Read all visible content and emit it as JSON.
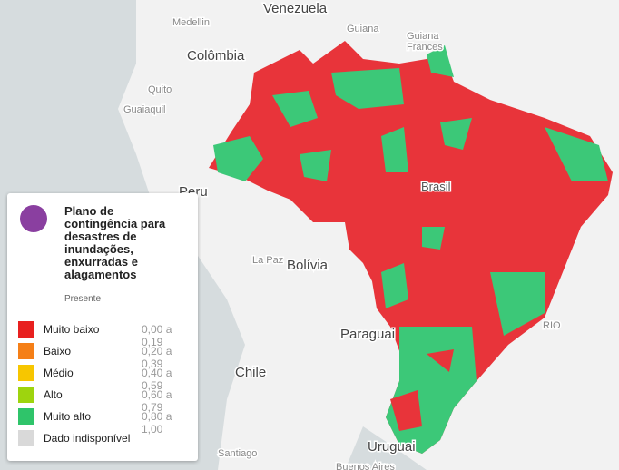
{
  "map": {
    "labels": [
      "Venezuela",
      "Medellin",
      "Colômbia",
      "Guiana",
      "Guiana",
      "Frances",
      "Quito",
      "Guaiaquil",
      "Peru",
      "Brasil",
      "La Paz",
      "Bolívia",
      "Paraguai",
      "Chile",
      "Uruguai",
      "Santiago",
      "Buenos Aires",
      "RIO"
    ]
  },
  "legend": {
    "title": "Plano de contingência para desastres de inundações, enxurradas e alagamentos",
    "subtitle": "Presente",
    "items": [
      {
        "label": "Muito baixo",
        "range": "0,00 a 0,19",
        "color": "#e8201f"
      },
      {
        "label": "Baixo",
        "range": "0,20 a 0,39",
        "color": "#f57f17"
      },
      {
        "label": "Médio",
        "range": "0,40 a 0,59",
        "color": "#f7c600"
      },
      {
        "label": "Alto",
        "range": "0,60 a 0,79",
        "color": "#9ed40e"
      },
      {
        "label": "Muito alto",
        "range": "0,80 a 1,00",
        "color": "#2fc46a"
      },
      {
        "label": "Dado indisponível",
        "range": null,
        "color": "#d9d9d9"
      }
    ]
  }
}
